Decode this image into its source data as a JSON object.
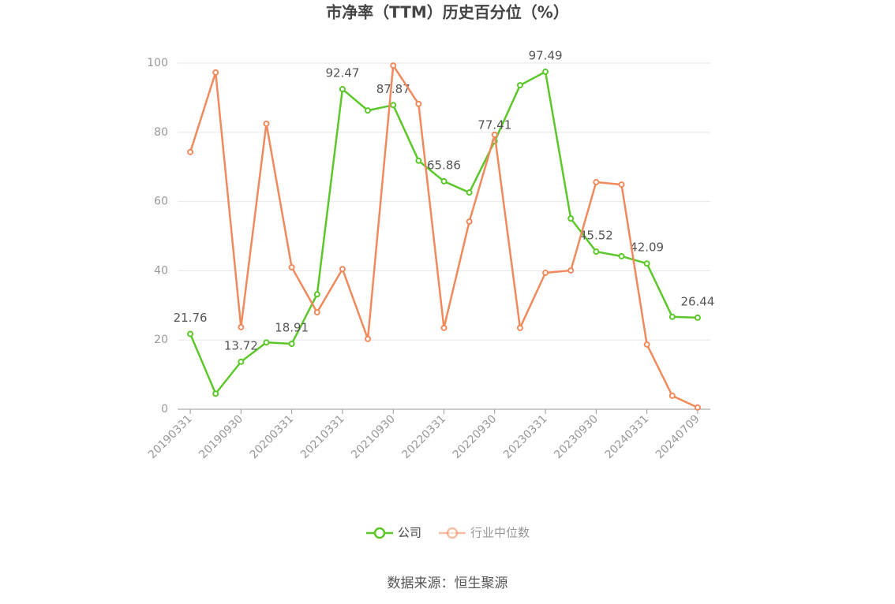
{
  "chart_data": {
    "type": "line",
    "title": "市净率（TTM）历史百分位（%）",
    "categories": [
      "20190331",
      null,
      "20190930",
      null,
      "20200331",
      null,
      "20210331",
      null,
      "20210930",
      null,
      "20220331",
      null,
      "20220930",
      null,
      "20230331",
      null,
      "20230930",
      null,
      "20240331",
      null,
      "20240709"
    ],
    "series": [
      {
        "name": "公司",
        "color": "#5cc72a",
        "values": [
          21.76,
          4.5,
          13.72,
          19.3,
          18.91,
          33.2,
          92.47,
          86.3,
          87.87,
          71.8,
          65.86,
          62.6,
          77.41,
          93.6,
          97.49,
          55.1,
          45.52,
          44.2,
          42.09,
          26.7,
          26.44
        ],
        "value_labels": [
          "21.76",
          null,
          "13.72",
          null,
          "18.91",
          null,
          "92.47",
          null,
          "87.87",
          null,
          "65.86",
          null,
          "77.41",
          null,
          "97.49",
          null,
          "45.52",
          null,
          "42.09",
          null,
          "26.44"
        ]
      },
      {
        "name": "行业中位数",
        "color": "#f08a5d",
        "values": [
          74.3,
          97.3,
          23.7,
          82.5,
          41.0,
          28.0,
          40.5,
          20.3,
          99.3,
          88.2,
          23.5,
          54.2,
          79.3,
          23.5,
          39.4,
          40.1,
          65.6,
          64.9,
          18.7,
          3.9,
          0.5
        ]
      }
    ],
    "ylim": [
      0,
      100
    ],
    "yticks": [
      0,
      20,
      40,
      60,
      80,
      100
    ],
    "grid": true,
    "legend": "bottom",
    "source": "数据来源：恒生聚源"
  }
}
